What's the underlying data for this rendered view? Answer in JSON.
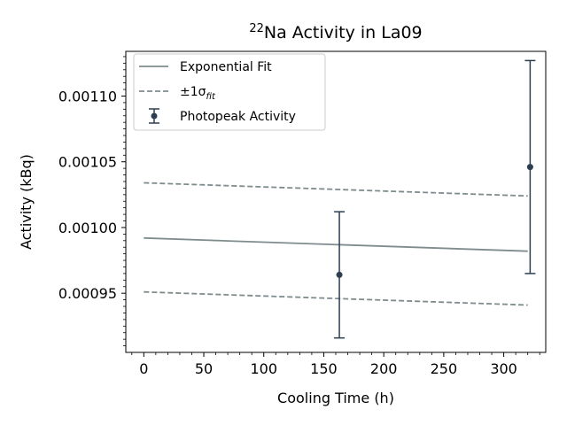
{
  "chart_data": {
    "type": "line",
    "title": {
      "superscript": "22",
      "main": "Na Activity in La09"
    },
    "xlabel": "Cooling Time (h)",
    "ylabel": "Activity (kBq)",
    "xlim": [
      -15,
      335
    ],
    "ylim": [
      0.000905,
      0.001134
    ],
    "xticks": [
      0,
      50,
      100,
      150,
      200,
      250,
      300
    ],
    "xtick_labels": [
      "0",
      "50",
      "100",
      "150",
      "200",
      "250",
      "300"
    ],
    "yticks": [
      0.00095,
      0.001,
      0.00105,
      0.0011
    ],
    "ytick_labels": [
      "0.00095",
      "0.00100",
      "0.00105",
      "0.00110"
    ],
    "grid": false,
    "legend_position": "upper-left",
    "colors": {
      "fit": "#7f8c8d",
      "points": "#2c3e50"
    },
    "series": [
      {
        "name": "Exponential Fit",
        "style": "solid",
        "x": [
          0,
          320
        ],
        "y": [
          0.000992,
          0.000982
        ]
      },
      {
        "name": "±1σfit",
        "name_parts": {
          "prefix": "±1σ",
          "subscript": "fit"
        },
        "style": "dashed",
        "x": [
          0,
          320
        ],
        "y": [
          0.001034,
          0.001024
        ]
      },
      {
        "name": "",
        "style": "dashed",
        "x": [
          0,
          320
        ],
        "y": [
          0.000951,
          0.000941
        ]
      },
      {
        "name": "Photopeak Activity",
        "style": "errorbar",
        "points": [
          {
            "x": 163,
            "y": 0.000964,
            "err": 4.8e-05
          },
          {
            "x": 322,
            "y": 0.001046,
            "err": 8.1e-05
          }
        ]
      }
    ]
  }
}
